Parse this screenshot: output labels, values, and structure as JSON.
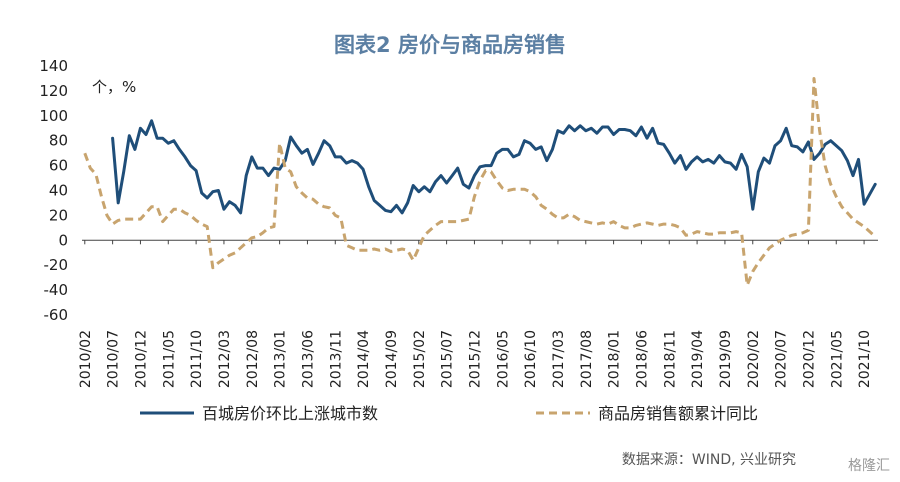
{
  "chart_data": {
    "type": "line",
    "title": "图表2  房价与商品房销售",
    "unit_label": "个，%",
    "ylim": [
      -60,
      140
    ],
    "yticks": [
      -60,
      -40,
      -20,
      0,
      20,
      40,
      60,
      80,
      100,
      120,
      140
    ],
    "x_start": "2010/02",
    "x_tick_labels": [
      "2010/02",
      "2010/07",
      "2010/12",
      "2011/05",
      "2011/10",
      "2012/03",
      "2012/08",
      "2013/01",
      "2013/06",
      "2013/11",
      "2014/04",
      "2014/09",
      "2015/02",
      "2015/07",
      "2015/12",
      "2016/05",
      "2016/10",
      "2017/03",
      "2017/08",
      "2018/01",
      "2018/06",
      "2018/11",
      "2019/04",
      "2019/09",
      "2020/02",
      "2020/07",
      "2020/12",
      "2021/05",
      "2021/10"
    ],
    "x_tick_step_months": 5,
    "grid": false,
    "legend_position": "bottom",
    "series": [
      {
        "name": "百城房价环比上涨城市数",
        "color": "#1f4e79",
        "style": "solid",
        "x": [
          "2010/07",
          "2010/08",
          "2010/09",
          "2010/10",
          "2010/11",
          "2010/12",
          "2011/01",
          "2011/02",
          "2011/03",
          "2011/04",
          "2011/05",
          "2011/06",
          "2011/07",
          "2011/08",
          "2011/09",
          "2011/10",
          "2011/11",
          "2011/12",
          "2012/01",
          "2012/02",
          "2012/03",
          "2012/04",
          "2012/05",
          "2012/06",
          "2012/07",
          "2012/08",
          "2012/09",
          "2012/10",
          "2012/11",
          "2012/12",
          "2013/01",
          "2013/02",
          "2013/03",
          "2013/04",
          "2013/05",
          "2013/06",
          "2013/07",
          "2013/08",
          "2013/09",
          "2013/10",
          "2013/11",
          "2013/12",
          "2014/01",
          "2014/02",
          "2014/03",
          "2014/04",
          "2014/05",
          "2014/06",
          "2014/07",
          "2014/08",
          "2014/09",
          "2014/10",
          "2014/11",
          "2014/12",
          "2015/01",
          "2015/02",
          "2015/03",
          "2015/04",
          "2015/05",
          "2015/06",
          "2015/07",
          "2015/08",
          "2015/09",
          "2015/10",
          "2015/11",
          "2015/12",
          "2016/01",
          "2016/02",
          "2016/03",
          "2016/04",
          "2016/05",
          "2016/06",
          "2016/07",
          "2016/08",
          "2016/09",
          "2016/10",
          "2016/11",
          "2016/12",
          "2017/01",
          "2017/02",
          "2017/03",
          "2017/04",
          "2017/05",
          "2017/06",
          "2017/07",
          "2017/08",
          "2017/09",
          "2017/10",
          "2017/11",
          "2017/12",
          "2018/01",
          "2018/02",
          "2018/03",
          "2018/04",
          "2018/05",
          "2018/06",
          "2018/07",
          "2018/08",
          "2018/09",
          "2018/10",
          "2018/11",
          "2018/12",
          "2019/01",
          "2019/02",
          "2019/03",
          "2019/04",
          "2019/05",
          "2019/06",
          "2019/07",
          "2019/08",
          "2019/09",
          "2019/10",
          "2019/11",
          "2019/12",
          "2020/01",
          "2020/02",
          "2020/03",
          "2020/04",
          "2020/05",
          "2020/06",
          "2020/07",
          "2020/08",
          "2020/09",
          "2020/10",
          "2020/11",
          "2020/12",
          "2021/01",
          "2021/02",
          "2021/03",
          "2021/04",
          "2021/05",
          "2021/06",
          "2021/07",
          "2021/08",
          "2021/09",
          "2021/10",
          "2021/11",
          "2021/12"
        ],
        "values": [
          82,
          30,
          55,
          84,
          73,
          90,
          85,
          96,
          82,
          82,
          78,
          80,
          73,
          67,
          60,
          56,
          38,
          34,
          39,
          40,
          25,
          31,
          28,
          22,
          52,
          67,
          58,
          58,
          52,
          58,
          57,
          64,
          83,
          76,
          70,
          73,
          61,
          70,
          80,
          76,
          67,
          67,
          62,
          64,
          62,
          57,
          43,
          32,
          28,
          24,
          23,
          28,
          22,
          30,
          44,
          39,
          43,
          39,
          47,
          52,
          46,
          52,
          58,
          45,
          42,
          52,
          59,
          60,
          60,
          70,
          73,
          73,
          67,
          69,
          80,
          78,
          73,
          75,
          64,
          73,
          88,
          86,
          92,
          88,
          92,
          88,
          90,
          86,
          91,
          91,
          85,
          89,
          89,
          88,
          84,
          91,
          82,
          90,
          78,
          77,
          70,
          62,
          68,
          57,
          63,
          67,
          63,
          65,
          62,
          68,
          63,
          62,
          57,
          69,
          59,
          25,
          55,
          66,
          62,
          76,
          80,
          90,
          76,
          75,
          71,
          79,
          65,
          70,
          77,
          80,
          76,
          72,
          64,
          52,
          65,
          29,
          37,
          45
        ]
      },
      {
        "name": "商品房销售额累计同比",
        "color": "#c8a46e",
        "style": "dashed",
        "x": [
          "2010/02",
          "2010/03",
          "2010/04",
          "2010/05",
          "2010/06",
          "2010/07",
          "2010/08",
          "2010/09",
          "2010/10",
          "2010/11",
          "2010/12",
          "2011/01",
          "2011/02",
          "2011/03",
          "2011/04",
          "2011/05",
          "2011/06",
          "2011/07",
          "2011/08",
          "2011/09",
          "2011/10",
          "2011/11",
          "2011/12",
          "2012/01",
          "2012/02",
          "2012/03",
          "2012/04",
          "2012/05",
          "2012/06",
          "2012/07",
          "2012/08",
          "2012/09",
          "2012/10",
          "2012/11",
          "2012/12",
          "2013/01",
          "2013/02",
          "2013/03",
          "2013/04",
          "2013/05",
          "2013/06",
          "2013/07",
          "2013/08",
          "2013/09",
          "2013/10",
          "2013/11",
          "2013/12",
          "2014/01",
          "2014/02",
          "2014/03",
          "2014/04",
          "2014/05",
          "2014/06",
          "2014/07",
          "2014/08",
          "2014/09",
          "2014/10",
          "2014/11",
          "2014/12",
          "2015/01",
          "2015/02",
          "2015/03",
          "2015/04",
          "2015/05",
          "2015/06",
          "2015/07",
          "2015/08",
          "2015/09",
          "2015/10",
          "2015/11",
          "2015/12",
          "2016/01",
          "2016/02",
          "2016/03",
          "2016/04",
          "2016/05",
          "2016/06",
          "2016/07",
          "2016/08",
          "2016/09",
          "2016/10",
          "2016/11",
          "2016/12",
          "2017/01",
          "2017/02",
          "2017/03",
          "2017/04",
          "2017/05",
          "2017/06",
          "2017/07",
          "2017/08",
          "2017/09",
          "2017/10",
          "2017/11",
          "2017/12",
          "2018/01",
          "2018/02",
          "2018/03",
          "2018/04",
          "2018/05",
          "2018/06",
          "2018/07",
          "2018/08",
          "2018/09",
          "2018/10",
          "2018/11",
          "2018/12",
          "2019/01",
          "2019/02",
          "2019/03",
          "2019/04",
          "2019/05",
          "2019/06",
          "2019/07",
          "2019/08",
          "2019/09",
          "2019/10",
          "2019/11",
          "2019/12",
          "2020/01",
          "2020/02",
          "2020/03",
          "2020/04",
          "2020/05",
          "2020/06",
          "2020/07",
          "2020/08",
          "2020/09",
          "2020/10",
          "2020/11",
          "2020/12",
          "2021/01",
          "2021/02",
          "2021/03",
          "2021/04",
          "2021/05",
          "2021/06",
          "2021/07",
          "2021/08",
          "2021/09",
          "2021/10",
          "2021/11",
          "2021/12"
        ],
        "values": [
          70,
          58,
          53,
          35,
          20,
          13,
          16,
          17,
          17,
          17,
          17,
          22,
          27,
          27,
          15,
          20,
          25,
          25,
          22,
          20,
          16,
          13,
          11,
          -22,
          -18,
          -15,
          -12,
          -10,
          -6,
          -2,
          2,
          3,
          6,
          10,
          11,
          78,
          58,
          55,
          43,
          38,
          34,
          33,
          29,
          27,
          26,
          20,
          18,
          -4,
          -6,
          -8,
          -8,
          -8,
          -7,
          -8,
          -7,
          -9,
          -8,
          -7,
          -8,
          -16,
          -6,
          4,
          8,
          12,
          15,
          15,
          15,
          15,
          16,
          17,
          35,
          48,
          56,
          55,
          48,
          42,
          40,
          41,
          41,
          41,
          39,
          35,
          28,
          25,
          21,
          18,
          18,
          21,
          19,
          16,
          15,
          14,
          13,
          14,
          13,
          15,
          12,
          10,
          10,
          12,
          13,
          14,
          13,
          12,
          13,
          13,
          12,
          10,
          4,
          5,
          7,
          6,
          5,
          5,
          6,
          6,
          6,
          7,
          6,
          -36,
          -25,
          -18,
          -12,
          -6,
          -3,
          0,
          2,
          4,
          5,
          6,
          8,
          130,
          88,
          60,
          45,
          35,
          27,
          22,
          17,
          14,
          11,
          7,
          3
        ]
      }
    ],
    "source": "数据来源：WIND, 兴业研究",
    "watermark": "格隆汇"
  }
}
